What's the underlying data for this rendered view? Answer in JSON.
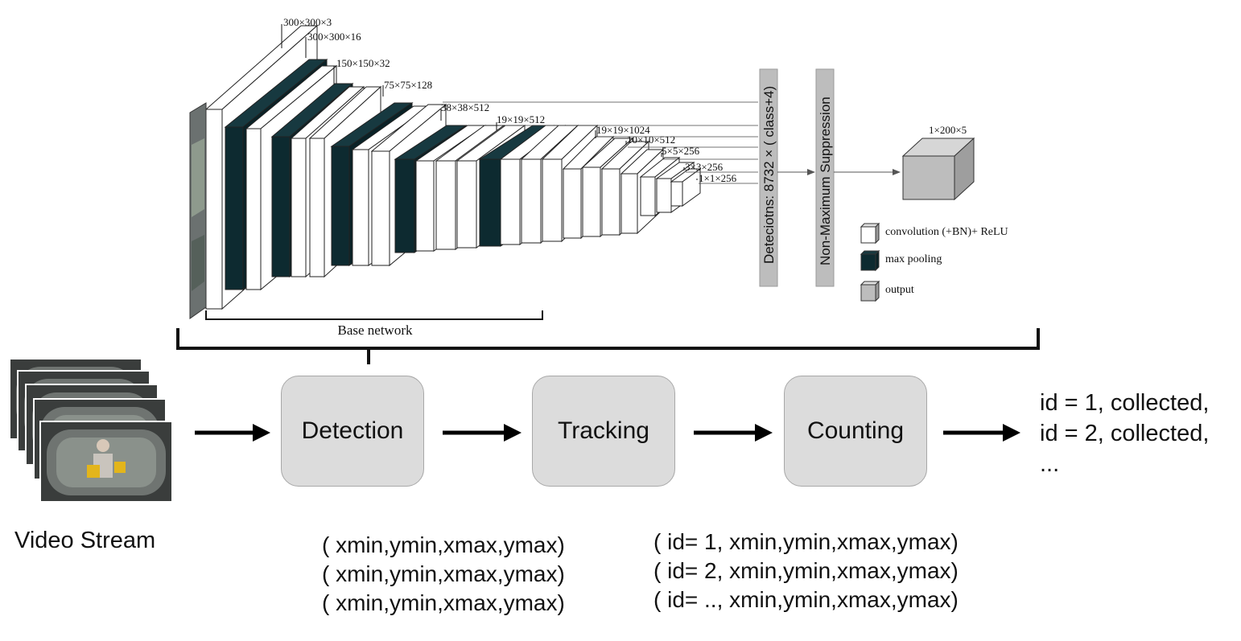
{
  "network": {
    "layer_labels": [
      "300×300×3",
      "300×300×16",
      "150×150×32",
      "75×75×128",
      "38×38×512",
      "19×19×512",
      "19×19×1024",
      "10×10×512",
      "5×5×256",
      "3×3×256",
      "1×1×256"
    ],
    "base_network_label": "Base network",
    "detections_label": "Deteciotns: 8732 × ( class+4)",
    "nms_label": "Non-Maximum Suppression",
    "output_label": "1×200×5"
  },
  "legend": [
    {
      "label": "convolution (+BN)+ ReLU",
      "color": "#ffffff"
    },
    {
      "label": "max pooling",
      "color": "#0d2a30"
    },
    {
      "label": "output",
      "color": "#bdbdbd"
    }
  ],
  "colors": {
    "conv": "#ffffff",
    "pool": "#0d2a30",
    "output": "#bdbdbd",
    "stage_box": "#dcdcdc"
  },
  "pipeline": {
    "stages": [
      "Detection",
      "Tracking",
      "Counting"
    ],
    "input_label": "Video Stream",
    "output_lines": [
      "id = 1,  collected,",
      "id = 2,  collected,",
      "..."
    ]
  },
  "annotations": {
    "detection_outputs": [
      "( xmin,ymin,xmax,ymax)",
      "( xmin,ymin,xmax,ymax)",
      "( xmin,ymin,xmax,ymax)"
    ],
    "tracking_outputs": [
      "( id= 1, xmin,ymin,xmax,ymax)",
      "( id= 2, xmin,ymin,xmax,ymax)",
      "( id= .., xmin,ymin,xmax,ymax)"
    ]
  }
}
